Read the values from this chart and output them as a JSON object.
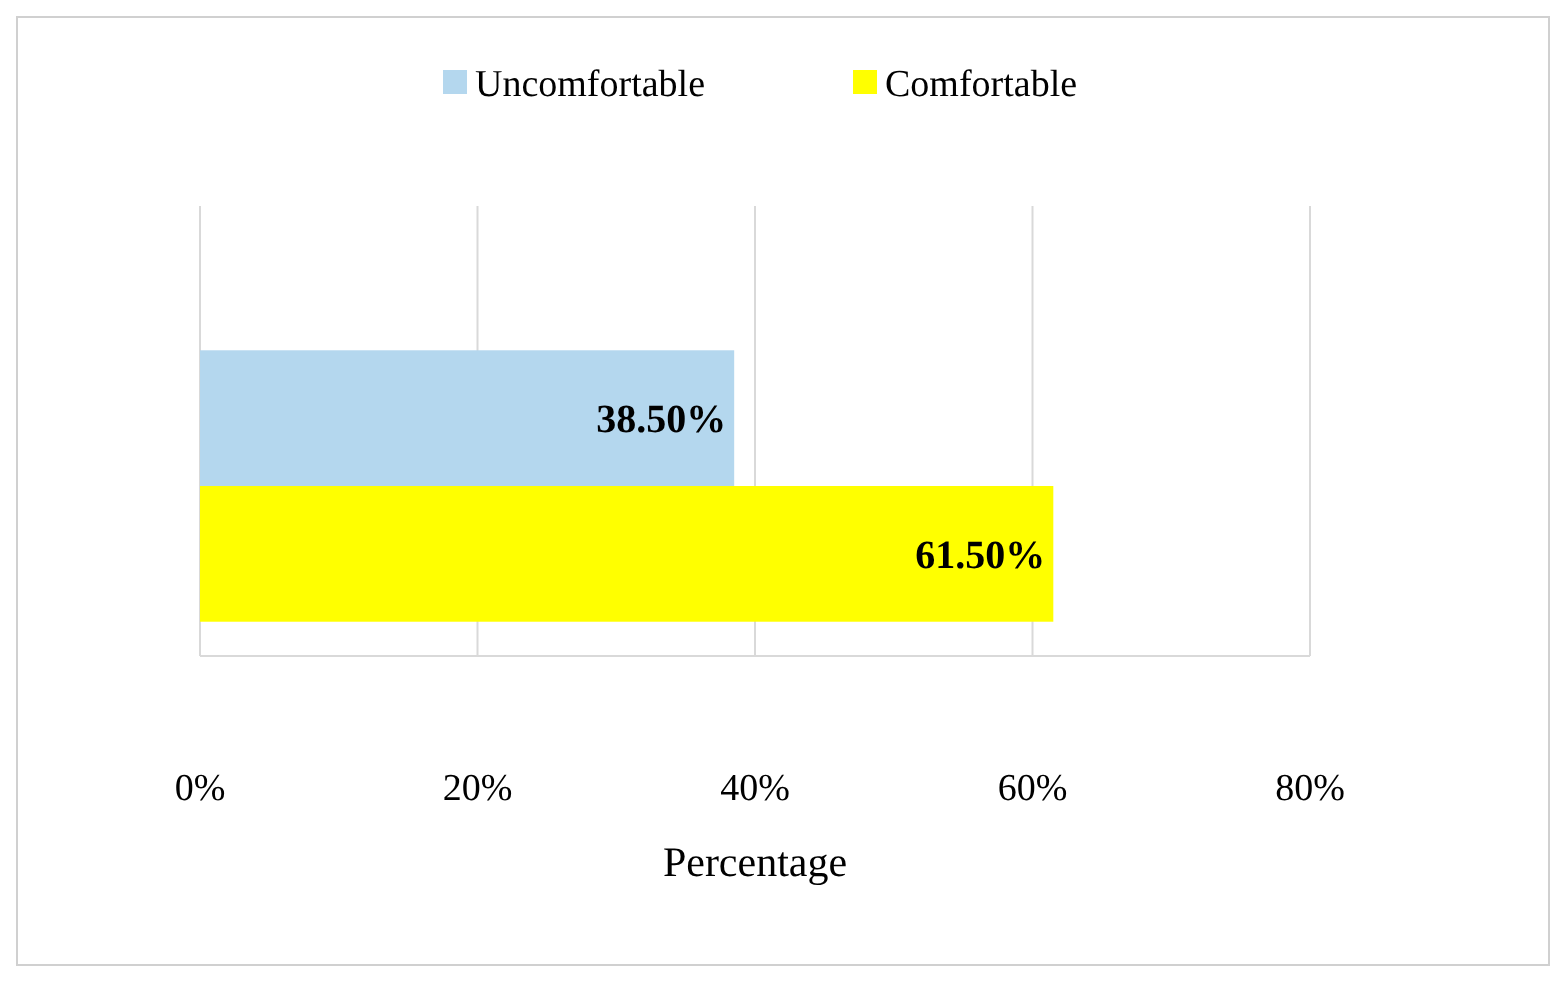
{
  "chart_data": {
    "type": "bar",
    "orientation": "horizontal",
    "xlabel": "Percentage",
    "categories": [
      null
    ],
    "series": [
      {
        "name": "Uncomfortable",
        "color": "#b4d7ee",
        "values": [
          38.5
        ],
        "value_labels": [
          "38.50%"
        ]
      },
      {
        "name": "Comfortable",
        "color": "#ffff00",
        "values": [
          61.5
        ],
        "value_labels": [
          "61.50%"
        ]
      }
    ],
    "xlim": [
      0,
      80
    ],
    "xticks": [
      {
        "value": 0,
        "label": "0%"
      },
      {
        "value": 20,
        "label": "20%"
      },
      {
        "value": 40,
        "label": "40%"
      },
      {
        "value": 60,
        "label": "60%"
      },
      {
        "value": 80,
        "label": "80%"
      }
    ],
    "grid": "x",
    "legend": "top"
  }
}
